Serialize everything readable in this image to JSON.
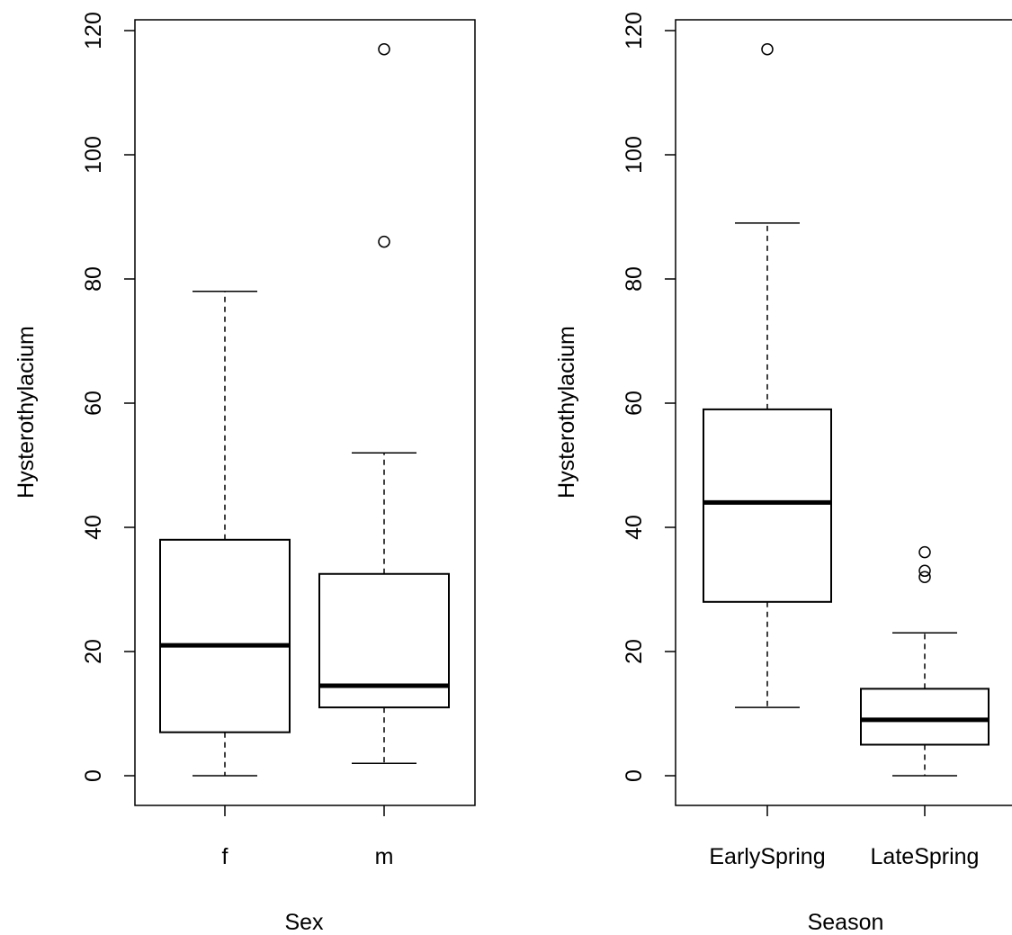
{
  "chart_data": [
    {
      "type": "box",
      "xlabel": "Sex",
      "ylabel": "Hysterothylacium",
      "ylim": [
        -5,
        122
      ],
      "yticks": [
        "0",
        "20",
        "40",
        "60",
        "80",
        "100",
        "120"
      ],
      "categories": [
        "f",
        "m"
      ],
      "boxes": [
        {
          "name": "f",
          "whisker_low": 0,
          "q1": 7,
          "median": 21,
          "q3": 38,
          "whisker_high": 78,
          "outliers": []
        },
        {
          "name": "m",
          "whisker_low": 2,
          "q1": 11,
          "median": 14.5,
          "q3": 32.5,
          "whisker_high": 52,
          "outliers": [
            86,
            117
          ]
        }
      ]
    },
    {
      "type": "box",
      "xlabel": "Season",
      "ylabel": "Hysterothylacium",
      "ylim": [
        -5,
        122
      ],
      "yticks": [
        "0",
        "20",
        "40",
        "60",
        "80",
        "100",
        "120"
      ],
      "categories": [
        "EarlySpring",
        "LateSpring"
      ],
      "boxes": [
        {
          "name": "EarlySpring",
          "whisker_low": 11,
          "q1": 28,
          "median": 44,
          "q3": 59,
          "whisker_high": 89,
          "outliers": [
            117
          ]
        },
        {
          "name": "LateSpring",
          "whisker_low": 0,
          "q1": 5,
          "median": 9,
          "q3": 14,
          "whisker_high": 23,
          "outliers": [
            32,
            33,
            36
          ]
        }
      ]
    }
  ]
}
